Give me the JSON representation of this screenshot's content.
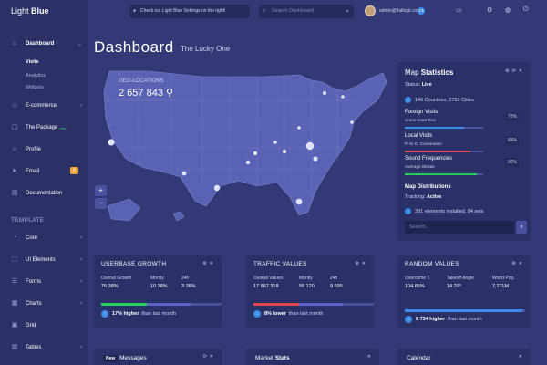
{
  "brand": {
    "light": "Light",
    "bold": "Blue"
  },
  "sidebar": {
    "dashboard": "Dashboard",
    "sub_items": [
      "Visits",
      "Analytics",
      "Widgets"
    ],
    "items": [
      {
        "label": "E-commerce",
        "icon": "diamond-icon"
      },
      {
        "label": "The Package",
        "badge": "new",
        "icon": "box-icon"
      },
      {
        "label": "Profile",
        "icon": "user-icon"
      },
      {
        "label": "Email",
        "badge_count": "9",
        "icon": "paper-plane-icon"
      },
      {
        "label": "Documentation",
        "icon": "book-icon"
      }
    ],
    "template_title": "TEMPLATE",
    "template_items": [
      {
        "label": "Core",
        "icon": "core-icon"
      },
      {
        "label": "UI Elements",
        "icon": "layers-icon"
      },
      {
        "label": "Forms",
        "icon": "forms-icon"
      },
      {
        "label": "Charts",
        "icon": "chart-icon"
      },
      {
        "label": "Grid",
        "icon": "grid-icon"
      },
      {
        "label": "Tables",
        "icon": "table-icon"
      }
    ]
  },
  "topbar": {
    "notice": "Check out Light Blue Settings on the right!",
    "search_placeholder": "Search Dashboard",
    "user_email": "admin@flatlogic.com",
    "user_count": "13"
  },
  "page": {
    "title": "Dashboard",
    "subtitle": "The Lucky One"
  },
  "map": {
    "geo_label": "GEO-LOCATIONS",
    "geo_value": "2 657 843"
  },
  "stats": {
    "title_light": "Map",
    "title_bold": "Statistics",
    "status_label": "Status:",
    "status_value": "Live",
    "countries": "146 Countries, 2759 Cities",
    "rows": [
      {
        "title": "Foreign Visits",
        "sub": "Some Cool Text",
        "pct": "75%",
        "fill": 0.75,
        "color": "#3d8ce6"
      },
      {
        "title": "Local Visits",
        "sub": "P. to C. Conversion",
        "pct": "84%",
        "fill": 0.84,
        "color": "#e0484c"
      },
      {
        "title": "Sound Frequencies",
        "sub": "Average Bitrate",
        "pct": "92%",
        "fill": 0.92,
        "color": "#26cd5f"
      }
    ],
    "dist_title": "Map Distributions",
    "tracking_label": "Tracking:",
    "tracking_value": "Active",
    "elements": "391 elements installed, 84 sets",
    "search_placeholder": "Search..."
  },
  "cards": [
    {
      "title": "USERBASE GROWTH",
      "cols": [
        {
          "label": "Overall Growth",
          "value": "76.38%"
        },
        {
          "label": "Montly",
          "value": "10.38%"
        },
        {
          "label": "24h",
          "value": "3.38%"
        }
      ],
      "bar": [
        {
          "fill": 0.38,
          "color": "#26cd5f"
        },
        {
          "fill": 0.36,
          "color": "#5964c9"
        }
      ],
      "foot_bold": "17% higher",
      "foot": "than last month",
      "arrow": "↑"
    },
    {
      "title": "TRAFFIC VALUES",
      "cols": [
        {
          "label": "Overall Values",
          "value": "17 567 318"
        },
        {
          "label": "Montly",
          "value": "55 120"
        },
        {
          "label": "24h",
          "value": "9 695"
        }
      ],
      "bar": [
        {
          "fill": 0.38,
          "color": "#e0484c"
        },
        {
          "fill": 0.36,
          "color": "#5964c9"
        }
      ],
      "foot_bold": "8% lower",
      "foot": "than last month",
      "arrow": "↓"
    },
    {
      "title": "RANDOM VALUES",
      "cols": [
        {
          "label": "Overcome T.",
          "value": "104.85%"
        },
        {
          "label": "Takeoff Angle",
          "value": "14.29°"
        },
        {
          "label": "World Pop.",
          "value": "7,211M"
        }
      ],
      "bar": [
        {
          "fill": 0.98,
          "color": "#3d8ce6"
        },
        {
          "fill": 0.0,
          "color": "#3d8ce6"
        }
      ],
      "foot_bold": "8 734 higher",
      "foot": "than last month",
      "arrow": "→"
    }
  ],
  "bottom": {
    "messages_badge": "New",
    "messages": "Messages",
    "market_light": "Market",
    "market_bold": "Stats",
    "calendar": "Calendar"
  }
}
